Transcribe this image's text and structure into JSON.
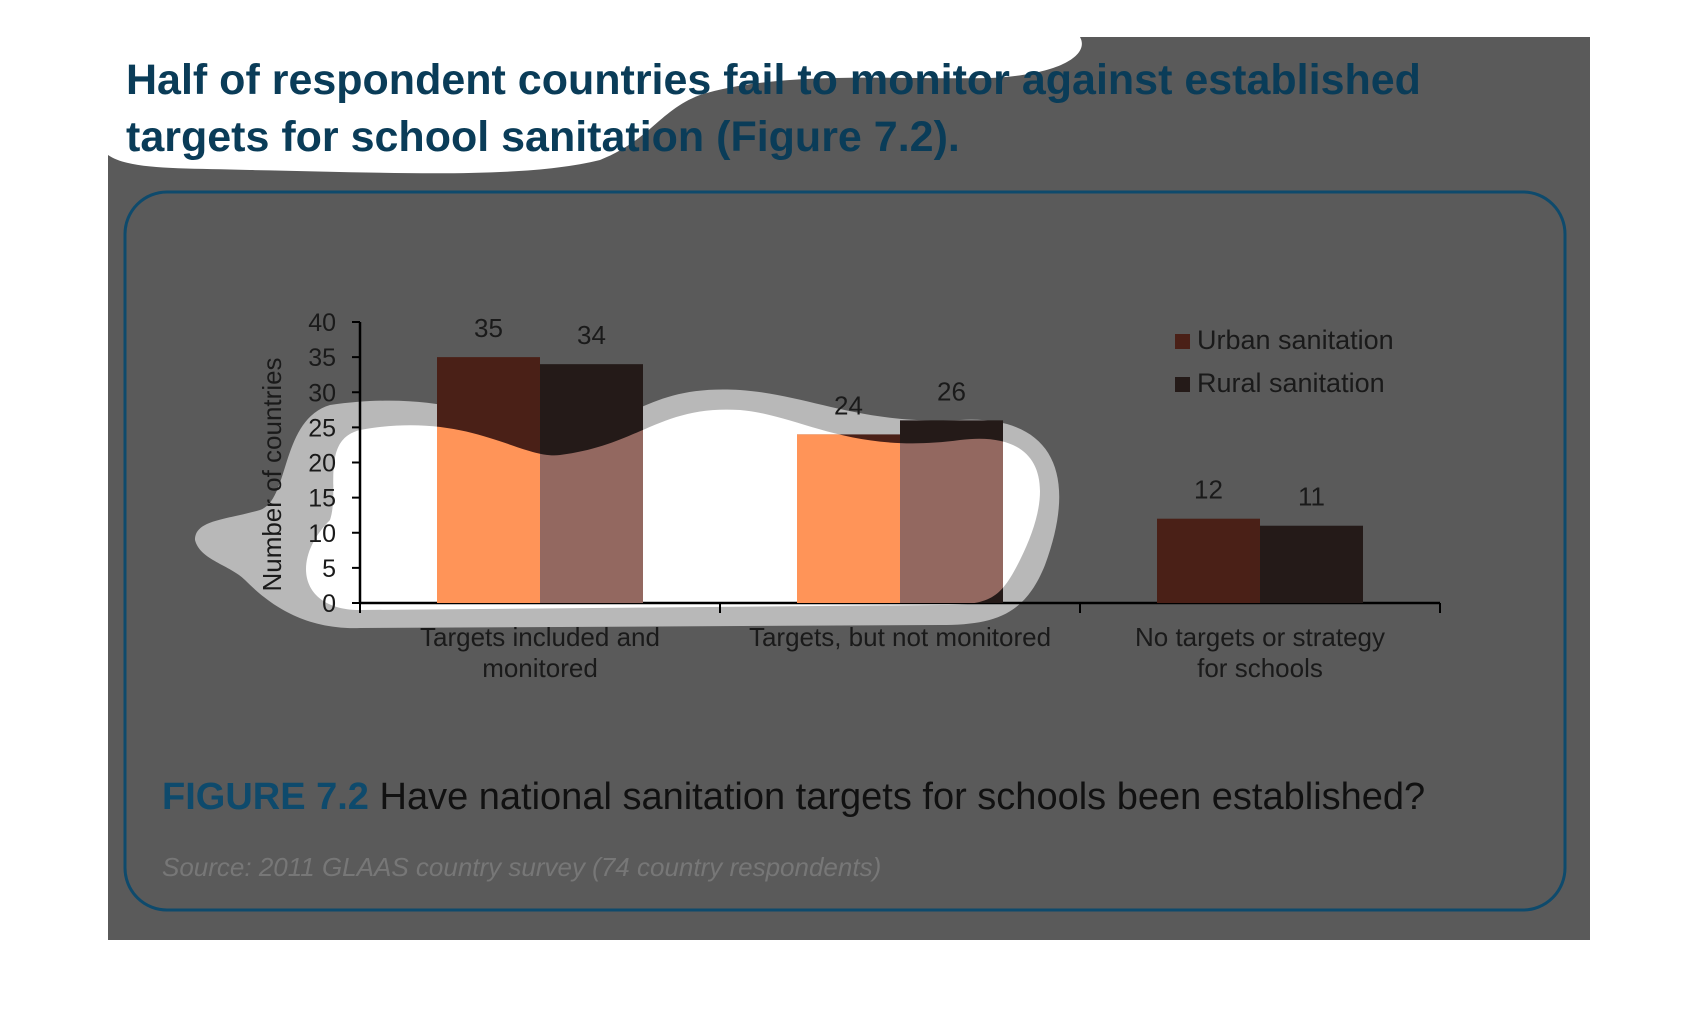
{
  "heading": "Half of respondent countries fail to monitor against established targets for school sanitation (Figure 7.2).",
  "caption": {
    "label": "FIGURE 7.2",
    "text": " Have national sanitation targets for schools been established?"
  },
  "source": "Source: 2011 GLAAS country survey (74 country respondents)",
  "colors": {
    "background_panel": "#5a5a5a",
    "frame_border": "#0e4a6c",
    "urban": "#4a2017",
    "rural": "#241a18",
    "highlight_urban": "#ff9458",
    "highlight_rural": "#936860"
  },
  "chart_data": {
    "type": "bar",
    "title": "",
    "ylabel": "Number of countries",
    "xlabel": "",
    "ylim": [
      0,
      40
    ],
    "yticks": [
      0,
      5,
      10,
      15,
      20,
      25,
      30,
      35,
      40
    ],
    "categories": [
      [
        "Targets included and",
        "monitored"
      ],
      [
        "Targets, but not monitored"
      ],
      [
        "No targets or strategy",
        "for schools"
      ]
    ],
    "series": [
      {
        "name": "Urban sanitation",
        "values": [
          35,
          24,
          12
        ]
      },
      {
        "name": "Rural sanitation",
        "values": [
          34,
          26,
          11
        ]
      }
    ],
    "data_labels": true,
    "legend_position": "top-right",
    "grid": false
  }
}
